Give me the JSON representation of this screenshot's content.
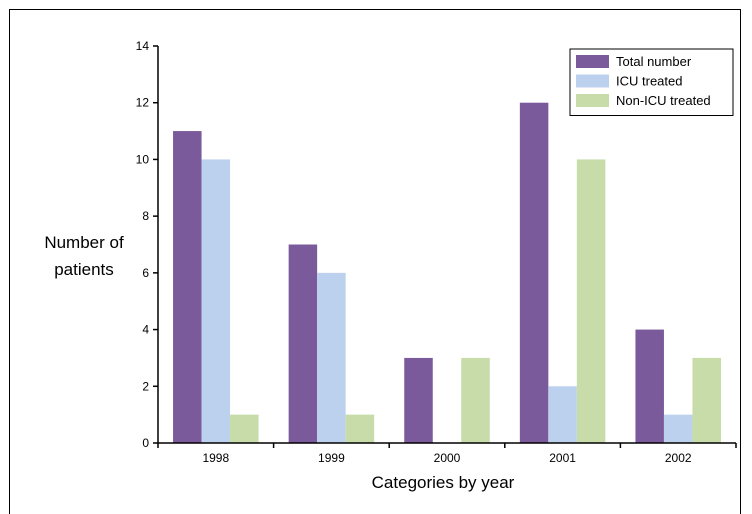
{
  "chart_data": {
    "type": "bar",
    "categories": [
      "1998",
      "1999",
      "2000",
      "2001",
      "2002"
    ],
    "series": [
      {
        "name": "Total number",
        "color": "#7b5a9c",
        "values": [
          11,
          7,
          3,
          12,
          4
        ]
      },
      {
        "name": "ICU treated",
        "color": "#bcd1ee",
        "values": [
          10,
          6,
          0,
          2,
          1
        ]
      },
      {
        "name": "Non-ICU treated",
        "color": "#c7dca8",
        "values": [
          1,
          1,
          3,
          10,
          3
        ]
      }
    ],
    "xlabel": "Categories by year",
    "ylabel": "Number of patients",
    "ylabel_lines": [
      "Number of",
      "patients"
    ],
    "ylim": [
      0,
      14
    ],
    "yticks": [
      0,
      2,
      4,
      6,
      8,
      10,
      12,
      14
    ],
    "grid": false,
    "legend_position": "top-right"
  }
}
